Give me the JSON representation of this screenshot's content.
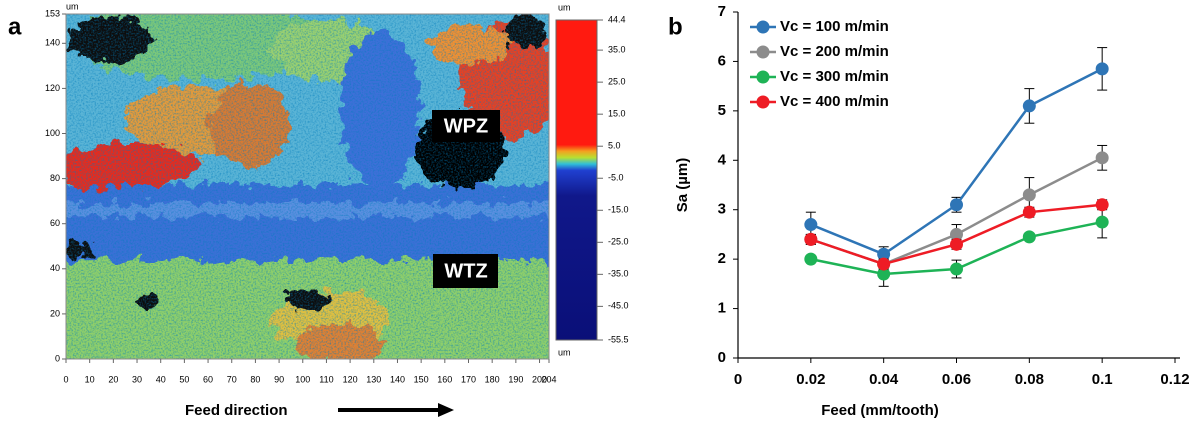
{
  "chart_data": [
    {
      "type": "image",
      "panel_label": "a",
      "ylabel": "um",
      "xlabel": "Feed direction",
      "xlim": [
        0,
        204
      ],
      "xticks": [
        0,
        10,
        20,
        30,
        40,
        50,
        60,
        70,
        80,
        90,
        100,
        110,
        120,
        130,
        140,
        150,
        160,
        170,
        180,
        190,
        200,
        204
      ],
      "ylim": [
        0,
        153
      ],
      "yticks": [
        0,
        20,
        40,
        60,
        80,
        100,
        120,
        140,
        153
      ],
      "colorbar": {
        "label": "um",
        "bottom_label": "um",
        "lim": [
          -55.5,
          44.4
        ],
        "ticks": [
          44.4,
          {
            "value": 35,
            "label": "35.0"
          },
          {
            "value": 25,
            "label": "25.0"
          },
          {
            "value": 15,
            "label": "15.0"
          },
          {
            "value": 5,
            "label": "5.0"
          },
          {
            "value": -5,
            "label": "-5.0"
          },
          {
            "value": -15,
            "label": "-15.0"
          },
          {
            "value": -25,
            "label": "-25.0"
          },
          {
            "value": -35,
            "label": "-35.0"
          },
          {
            "value": -45,
            "label": "-45.0"
          },
          -55.5
        ]
      },
      "annotations": [
        "WPZ",
        "WTZ"
      ]
    },
    {
      "type": "line",
      "panel_label": "b",
      "xlabel": "Feed (mm/tooth)",
      "ylabel": "Sa (µm)",
      "x": [
        0.02,
        0.04,
        0.06,
        0.08,
        0.1
      ],
      "xlim": [
        0,
        0.12
      ],
      "xticks": [
        0,
        0.02,
        0.04,
        0.06,
        0.08,
        0.1,
        0.12
      ],
      "ylim": [
        0,
        7
      ],
      "yticks": [
        0,
        1,
        2,
        3,
        4,
        5,
        6,
        7
      ],
      "legend": "upper-left",
      "series": [
        {
          "name": "Vc = 100 m/min",
          "color": "#2e75b6",
          "values": [
            2.7,
            2.1,
            3.1,
            5.1,
            5.85
          ],
          "errors": [
            0.25,
            0.15,
            0.15,
            0.35,
            0.43
          ]
        },
        {
          "name": "Vc = 200 m/min",
          "color": "#8c8c8c",
          "values": [
            2.4,
            1.9,
            2.5,
            3.3,
            4.05
          ],
          "errors": [
            0.1,
            0.1,
            0.2,
            0.35,
            0.25
          ]
        },
        {
          "name": "Vc = 300 m/min",
          "color": "#1eb356",
          "values": [
            2.0,
            1.7,
            1.8,
            2.45,
            2.75
          ],
          "errors": [
            0.05,
            0.25,
            0.18,
            0.05,
            0.32
          ]
        },
        {
          "name": "Vc = 400 m/min",
          "color": "#ee1c25",
          "values": [
            2.4,
            1.9,
            2.3,
            2.95,
            3.1
          ],
          "errors": [
            0.1,
            0.1,
            0.1,
            0.1,
            0.1
          ]
        }
      ]
    }
  ]
}
